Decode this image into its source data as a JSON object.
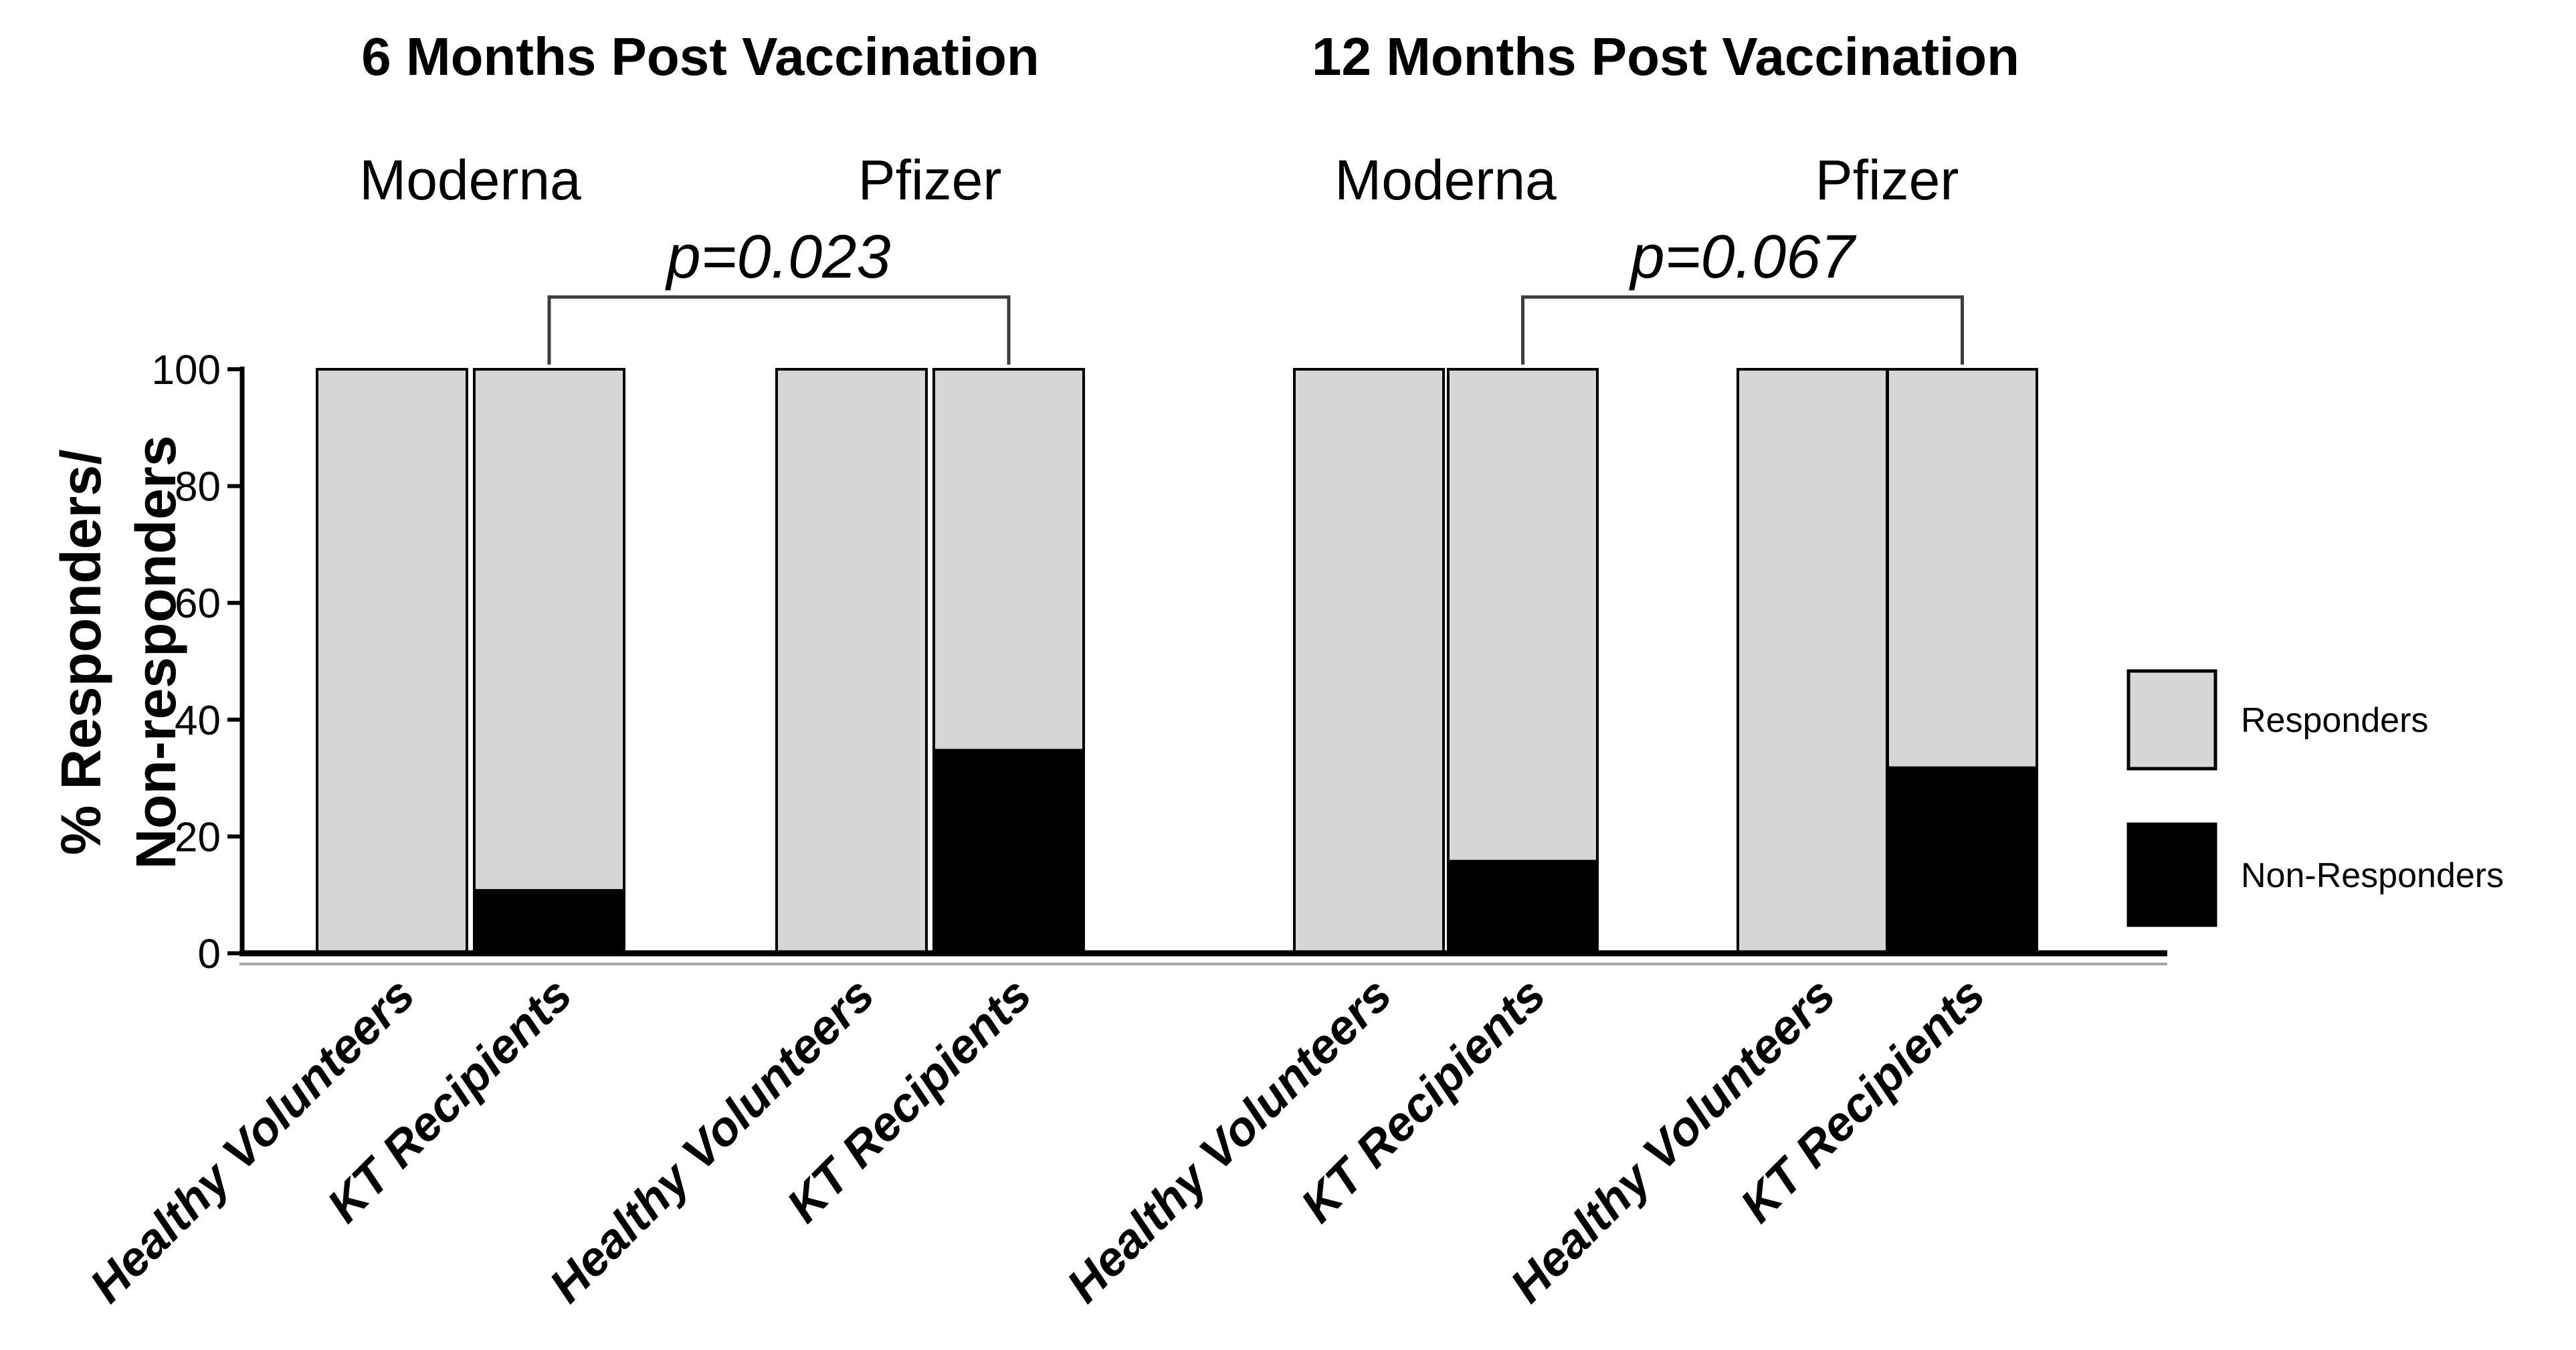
{
  "chart_data": {
    "type": "bar",
    "stacked": true,
    "unit": "%",
    "title": "",
    "ylabel_lines": [
      "% Responders/",
      "Non-responders"
    ],
    "y_axis": {
      "min": 0,
      "max": 100,
      "ticks": [
        0,
        20,
        40,
        60,
        80,
        100
      ]
    },
    "legend": {
      "position": "right",
      "entries": [
        {
          "label": "Responders",
          "color": "#d6d6d6"
        },
        {
          "label": "Non-Responders",
          "color": "#000000"
        }
      ]
    },
    "panels": [
      {
        "title": "6 Months Post Vaccination",
        "p_value": "p=0.023",
        "p_bracket_between": [
          "KT Recipients (Moderna)",
          "KT Recipients (Pfizer)"
        ],
        "vaccine_groups": [
          {
            "label": "Moderna",
            "categories": [
              "Healthy Volunteers",
              "KT Recipients"
            ],
            "series": [
              {
                "name": "Responders",
                "values": [
                  100,
                  89
                ]
              },
              {
                "name": "Non-Responders",
                "values": [
                  0,
                  11
                ]
              }
            ]
          },
          {
            "label": "Pfizer",
            "categories": [
              "Healthy Volunteers",
              "KT Recipients"
            ],
            "series": [
              {
                "name": "Responders",
                "values": [
                  100,
                  65
                ]
              },
              {
                "name": "Non-Responders",
                "values": [
                  0,
                  35
                ]
              }
            ]
          }
        ]
      },
      {
        "title": "12 Months Post Vaccination",
        "p_value": "p=0.067",
        "p_bracket_between": [
          "KT Recipients (Moderna)",
          "KT Recipients (Pfizer)"
        ],
        "vaccine_groups": [
          {
            "label": "Moderna",
            "categories": [
              "Healthy Volunteers",
              "KT Recipients"
            ],
            "series": [
              {
                "name": "Responders",
                "values": [
                  100,
                  84
                ]
              },
              {
                "name": "Non-Responders",
                "values": [
                  0,
                  16
                ]
              }
            ]
          },
          {
            "label": "Pfizer",
            "categories": [
              "Healthy Volunteers",
              "KT Recipients"
            ],
            "series": [
              {
                "name": "Responders",
                "values": [
                  100,
                  68
                ]
              },
              {
                "name": "Non-Responders",
                "values": [
                  0,
                  32
                ]
              }
            ]
          }
        ]
      }
    ],
    "colors": {
      "responders": "#d6d6d6",
      "non_responders": "#000000",
      "axis": "#000000",
      "bracket": "#3d3d3d",
      "background": "#ffffff"
    }
  }
}
